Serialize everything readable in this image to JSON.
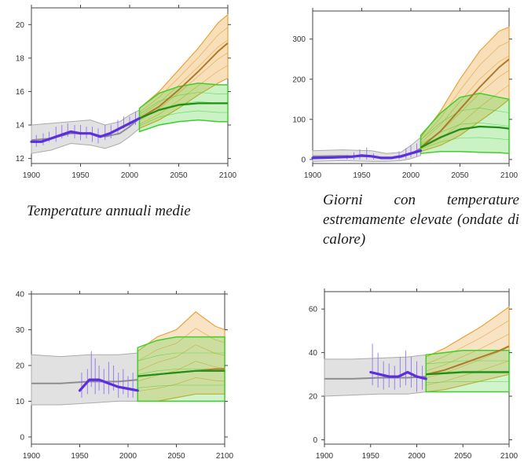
{
  "captions": {
    "p1": "Temperature annuali medie",
    "p2": "Giorni con temperature estremamente elevate (ondate di calore)"
  },
  "colors": {
    "observed": "#5b2ee0",
    "observed_thin": "#8d6cf0",
    "historical_band": "#c9c9c9",
    "historical_mean": "#8e8e8e",
    "rcp_high": "#e8a33a",
    "rcp_high_mean": "#b07a2b",
    "rcp_low": "#3fcf2c",
    "rcp_low_mean": "#1f8f16"
  },
  "chart_data": [
    {
      "type": "line",
      "title": "Temperature annuali medie",
      "xlim": [
        1900,
        2100
      ],
      "ylim": [
        11.7,
        21
      ],
      "xticks": [
        1900,
        1950,
        2000,
        2050,
        2100
      ],
      "yticks": [
        12,
        14,
        16,
        18,
        20
      ],
      "grid": false,
      "band_alpha": 0.35,
      "series": [
        {
          "role": "historical_band",
          "x": [
            1900,
            1920,
            1940,
            1960,
            1975,
            1990,
            2000,
            2010
          ],
          "low": [
            12.3,
            12.5,
            12.9,
            12.8,
            12.6,
            12.9,
            13.3,
            13.8
          ],
          "high": [
            14.0,
            14.1,
            14.2,
            14.3,
            14.0,
            14.2,
            14.6,
            14.9
          ]
        },
        {
          "role": "historical_mean",
          "x": [
            1900,
            1920,
            1940,
            1960,
            1975,
            1990,
            2000,
            2010
          ],
          "values": [
            13.1,
            13.2,
            13.5,
            13.5,
            13.3,
            13.5,
            13.9,
            14.4
          ]
        },
        {
          "role": "observed_smooth",
          "x": [
            1900,
            1910,
            1920,
            1930,
            1940,
            1950,
            1960,
            1970,
            1980,
            1990,
            2000,
            2010
          ],
          "values": [
            13.0,
            13.0,
            13.2,
            13.4,
            13.6,
            13.5,
            13.5,
            13.3,
            13.5,
            13.8,
            14.1,
            14.4
          ]
        },
        {
          "role": "observed_annual",
          "x": [
            1905,
            1912,
            1918,
            1925,
            1931,
            1937,
            1944,
            1950,
            1956,
            1962,
            1968,
            1975,
            1981,
            1988,
            1994,
            2000,
            2006
          ],
          "low": [
            12.7,
            12.8,
            13.0,
            13.0,
            13.2,
            13.3,
            13.2,
            13.1,
            13.2,
            13.0,
            12.9,
            13.1,
            13.2,
            13.4,
            13.8,
            13.9,
            14.0
          ],
          "high": [
            13.4,
            13.5,
            13.6,
            13.9,
            14.0,
            14.1,
            14.0,
            14.0,
            13.9,
            13.9,
            13.8,
            14.0,
            14.0,
            14.3,
            14.5,
            14.5,
            14.8
          ]
        },
        {
          "role": "rcp_high_band",
          "x": [
            2010,
            2030,
            2050,
            2070,
            2090,
            2100
          ],
          "low": [
            13.8,
            14.3,
            15.0,
            15.8,
            16.5,
            16.8
          ],
          "high": [
            15.0,
            16.0,
            17.3,
            18.6,
            20.1,
            20.6
          ]
        },
        {
          "role": "rcp_high_mean",
          "x": [
            2010,
            2030,
            2050,
            2070,
            2090,
            2100
          ],
          "values": [
            14.4,
            15.1,
            16.1,
            17.2,
            18.4,
            18.9
          ]
        },
        {
          "role": "rcp_low_band",
          "x": [
            2010,
            2030,
            2050,
            2070,
            2090,
            2100
          ],
          "low": [
            13.6,
            14.0,
            14.2,
            14.3,
            14.2,
            14.2
          ],
          "high": [
            15.0,
            15.9,
            16.3,
            16.5,
            16.4,
            16.4
          ]
        },
        {
          "role": "rcp_low_mean",
          "x": [
            2010,
            2030,
            2050,
            2070,
            2090,
            2100
          ],
          "values": [
            14.4,
            14.9,
            15.2,
            15.3,
            15.3,
            15.3
          ]
        }
      ]
    },
    {
      "type": "line",
      "title": "Giorni con temperature estremamente elevate (ondate di calore)",
      "xlim": [
        1900,
        2100
      ],
      "ylim": [
        -10,
        370
      ],
      "xticks": [
        1900,
        1950,
        2000,
        2050,
        2100
      ],
      "yticks": [
        0,
        100,
        200,
        300
      ],
      "grid": false,
      "band_alpha": 0.35,
      "series": [
        {
          "role": "historical_band",
          "x": [
            1900,
            1930,
            1960,
            1975,
            1990,
            2000,
            2010
          ],
          "low": [
            -5,
            -3,
            -5,
            -5,
            -3,
            2,
            10
          ],
          "high": [
            22,
            24,
            22,
            15,
            18,
            35,
            55
          ]
        },
        {
          "role": "historical_mean",
          "x": [
            1900,
            1930,
            1960,
            1975,
            1990,
            2000,
            2010
          ],
          "values": [
            8,
            9,
            7,
            4,
            6,
            14,
            28
          ]
        },
        {
          "role": "observed_smooth",
          "x": [
            1900,
            1920,
            1940,
            1950,
            1960,
            1970,
            1980,
            1990,
            2000,
            2010
          ],
          "values": [
            4,
            5,
            7,
            10,
            8,
            4,
            4,
            8,
            15,
            22
          ]
        },
        {
          "role": "observed_annual",
          "x": [
            1935,
            1942,
            1948,
            1955,
            1962,
            1988,
            1995,
            2000,
            2006
          ],
          "low": [
            0,
            0,
            0,
            0,
            0,
            0,
            2,
            5,
            8
          ],
          "high": [
            12,
            18,
            25,
            30,
            15,
            20,
            28,
            35,
            40
          ]
        },
        {
          "role": "rcp_high_band",
          "x": [
            2010,
            2030,
            2050,
            2070,
            2090,
            2100
          ],
          "low": [
            20,
            35,
            60,
            95,
            130,
            150
          ],
          "high": [
            55,
            120,
            200,
            270,
            320,
            330
          ]
        },
        {
          "role": "rcp_high_mean",
          "x": [
            2010,
            2030,
            2050,
            2070,
            2090,
            2100
          ],
          "values": [
            30,
            70,
            125,
            180,
            230,
            250
          ]
        },
        {
          "role": "rcp_low_band",
          "x": [
            2010,
            2030,
            2050,
            2070,
            2090,
            2100
          ],
          "low": [
            15,
            20,
            20,
            18,
            17,
            15
          ],
          "high": [
            60,
            115,
            155,
            165,
            155,
            150
          ]
        },
        {
          "role": "rcp_low_mean",
          "x": [
            2010,
            2030,
            2050,
            2070,
            2090,
            2100
          ],
          "values": [
            30,
            55,
            75,
            82,
            80,
            77
          ]
        }
      ]
    },
    {
      "type": "line",
      "xlim": [
        1900,
        2100
      ],
      "ylim": [
        -2,
        40
      ],
      "xticks": [
        1900,
        1950,
        2000,
        2050,
        2100
      ],
      "yticks": [
        0,
        10,
        20,
        30,
        40
      ],
      "grid": false,
      "band_alpha": 0.3,
      "series": [
        {
          "role": "historical_band",
          "x": [
            1900,
            1930,
            1960,
            1990,
            2010
          ],
          "low": [
            9,
            9,
            9.5,
            10,
            10
          ],
          "high": [
            23,
            22.5,
            23,
            23,
            23.5
          ]
        },
        {
          "role": "historical_mean",
          "x": [
            1900,
            1930,
            1960,
            1990,
            2010
          ],
          "values": [
            15,
            15,
            15.5,
            15.5,
            16
          ]
        },
        {
          "role": "observed_smooth",
          "x": [
            1950,
            1960,
            1970,
            1980,
            1990,
            2000,
            2010
          ],
          "values": [
            13,
            16,
            16,
            15,
            14,
            13.5,
            13
          ]
        },
        {
          "role": "observed_annual",
          "x": [
            1952,
            1958,
            1962,
            1966,
            1970,
            1975,
            1980,
            1985,
            1990,
            1995,
            2000,
            2005
          ],
          "low": [
            11,
            12,
            14,
            12,
            13,
            12,
            12,
            13,
            11,
            12,
            11,
            11
          ],
          "high": [
            18,
            19,
            24,
            22,
            20,
            19,
            21,
            20,
            18,
            19,
            17,
            18
          ]
        },
        {
          "role": "rcp_high_band",
          "x": [
            2010,
            2030,
            2050,
            2070,
            2090,
            2100
          ],
          "low": [
            10,
            10,
            11,
            12,
            12,
            12
          ],
          "high": [
            24,
            28,
            30,
            35,
            31,
            30
          ]
        },
        {
          "role": "rcp_high_mean",
          "x": [
            2010,
            2030,
            2050,
            2070,
            2090,
            2100
          ],
          "values": [
            17,
            17.5,
            18,
            18.5,
            19,
            19
          ]
        },
        {
          "role": "rcp_low_band",
          "x": [
            2010,
            2030,
            2050,
            2070,
            2090,
            2100
          ],
          "low": [
            10,
            10,
            10,
            10,
            10,
            10
          ],
          "high": [
            25,
            27,
            28,
            28,
            28,
            28
          ]
        },
        {
          "role": "rcp_low_mean",
          "x": [
            2010,
            2030,
            2050,
            2070,
            2090,
            2100
          ],
          "values": [
            17,
            17.5,
            18,
            18.5,
            18.5,
            18.5
          ]
        }
      ]
    },
    {
      "type": "line",
      "xlim": [
        1900,
        2100
      ],
      "ylim": [
        -2,
        68
      ],
      "xticks": [
        1900,
        1950,
        2000,
        2050,
        2100
      ],
      "yticks": [
        0,
        20,
        40,
        60
      ],
      "grid": false,
      "band_alpha": 0.3,
      "series": [
        {
          "role": "historical_band",
          "x": [
            1900,
            1930,
            1960,
            1990,
            2010
          ],
          "low": [
            20,
            20.5,
            21,
            21,
            22
          ],
          "high": [
            37,
            37,
            37.5,
            38,
            39
          ]
        },
        {
          "role": "historical_mean",
          "x": [
            1900,
            1930,
            1960,
            1990,
            2010
          ],
          "values": [
            28,
            28,
            28.5,
            28.5,
            29
          ]
        },
        {
          "role": "observed_smooth",
          "x": [
            1950,
            1960,
            1970,
            1980,
            1990,
            2000,
            2010
          ],
          "values": [
            31,
            30,
            29,
            29,
            31,
            29,
            28
          ]
        },
        {
          "role": "observed_annual",
          "x": [
            1952,
            1958,
            1964,
            1970,
            1976,
            1982,
            1988,
            1994,
            2000,
            2006
          ],
          "low": [
            25,
            24,
            23,
            24,
            23,
            24,
            25,
            24,
            22,
            23
          ],
          "high": [
            44,
            40,
            36,
            35,
            34,
            38,
            41,
            38,
            36,
            34
          ]
        },
        {
          "role": "rcp_high_band",
          "x": [
            2010,
            2030,
            2050,
            2070,
            2090,
            2100
          ],
          "low": [
            22,
            23,
            25,
            27,
            29,
            30
          ],
          "high": [
            38,
            42,
            47,
            52,
            58,
            61
          ]
        },
        {
          "role": "rcp_high_mean",
          "x": [
            2010,
            2030,
            2050,
            2070,
            2090,
            2100
          ],
          "values": [
            30,
            32,
            35,
            38,
            41,
            43
          ]
        },
        {
          "role": "rcp_low_band",
          "x": [
            2010,
            2030,
            2050,
            2070,
            2090,
            2100
          ],
          "low": [
            22,
            22,
            22,
            22,
            22,
            22
          ],
          "high": [
            39,
            40,
            41,
            41,
            41,
            41
          ]
        },
        {
          "role": "rcp_low_mean",
          "x": [
            2010,
            2030,
            2050,
            2070,
            2090,
            2100
          ],
          "values": [
            30,
            30.5,
            31,
            31,
            31,
            31
          ]
        }
      ]
    }
  ]
}
